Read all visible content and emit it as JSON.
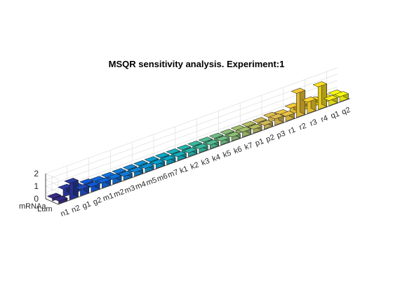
{
  "chart_data": {
    "type": "bar3d",
    "title": "MSQR sensitivity analysis. Experiment:1",
    "xlabel": "",
    "ylabel": "",
    "zlabel": "",
    "zlim": [
      0,
      2
    ],
    "zticks": [
      "0",
      "1",
      "2"
    ],
    "grid": true,
    "colormap": "parula",
    "categories": [
      "n1",
      "n2",
      "g1",
      "g2",
      "m1",
      "m2",
      "m3",
      "m4",
      "m5",
      "m6",
      "m7",
      "k1",
      "k2",
      "k3",
      "k4",
      "k5",
      "k6",
      "k7",
      "p1",
      "p2",
      "p3",
      "r1",
      "r2",
      "r3",
      "r4",
      "q1",
      "q2"
    ],
    "series": [
      {
        "name": "Lum",
        "values": [
          0.2,
          1.3,
          0.5,
          0.4,
          0.4,
          0.4,
          0.3,
          0.3,
          0.3,
          0.3,
          0.3,
          0.3,
          0.3,
          0.3,
          0.3,
          0.3,
          0.3,
          0.4,
          0.3,
          0.3,
          0.5,
          0.4,
          1.9,
          0.9,
          1.8,
          0.4,
          0.4
        ]
      },
      {
        "name": "mRNAa",
        "values": [
          0.2,
          0.6,
          0.4,
          0.4,
          0.3,
          0.3,
          0.3,
          0.3,
          0.3,
          0.3,
          0.3,
          0.3,
          0.3,
          0.3,
          0.3,
          0.3,
          0.3,
          0.3,
          0.3,
          0.3,
          0.4,
          0.3,
          0.5,
          0.4,
          0.4,
          0.3,
          0.3
        ]
      }
    ]
  }
}
